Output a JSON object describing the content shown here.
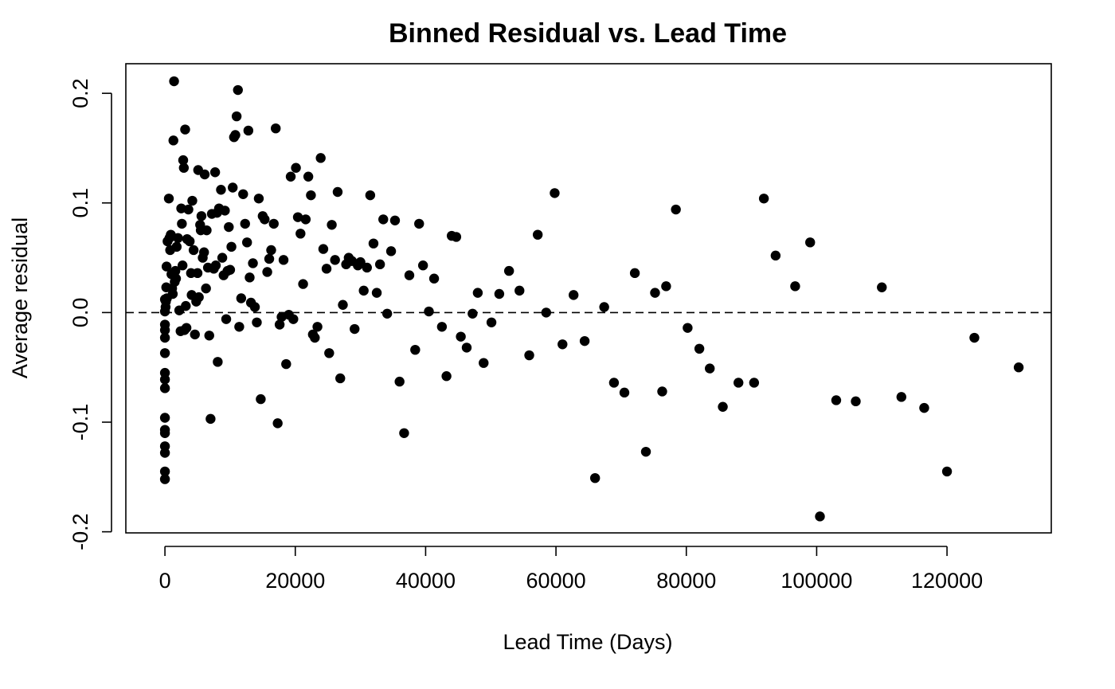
{
  "chart_data": {
    "type": "scatter",
    "title": "Binned Residual vs. Lead Time",
    "xlabel": "Lead Time (Days)",
    "ylabel": "Average residual",
    "xlim": [
      -6000,
      136000
    ],
    "ylim": [
      -0.201,
      0.227
    ],
    "x_ticks": [
      0,
      20000,
      40000,
      60000,
      80000,
      100000,
      120000
    ],
    "x_tick_labels": [
      "0",
      "20000",
      "40000",
      "60000",
      "80000",
      "100000",
      "120000"
    ],
    "y_ticks": [
      -0.2,
      -0.1,
      0.0,
      0.1,
      0.2
    ],
    "y_tick_labels": [
      "-0.2",
      "-0.1",
      "0.0",
      "0.1",
      "0.2"
    ],
    "reference_line": {
      "y": 0,
      "style": "dashed"
    },
    "grid": false,
    "marker_color": "#000000",
    "points": [
      [
        0,
        -0.152
      ],
      [
        0,
        -0.145
      ],
      [
        0,
        -0.128
      ],
      [
        0,
        -0.122
      ],
      [
        0,
        -0.11
      ],
      [
        0,
        -0.107
      ],
      [
        0,
        -0.096
      ],
      [
        0,
        -0.069
      ],
      [
        0,
        -0.061
      ],
      [
        0,
        -0.055
      ],
      [
        0,
        -0.037
      ],
      [
        0,
        -0.023
      ],
      [
        0,
        -0.016
      ],
      [
        0,
        -0.011
      ],
      [
        0,
        0.001
      ],
      [
        0,
        0.012
      ],
      [
        100,
        0.005
      ],
      [
        150,
        0.01
      ],
      [
        200,
        0.023
      ],
      [
        250,
        0.042
      ],
      [
        300,
        0.013
      ],
      [
        400,
        0.065
      ],
      [
        600,
        0.104
      ],
      [
        700,
        0.068
      ],
      [
        800,
        0.057
      ],
      [
        900,
        0.071
      ],
      [
        1000,
        0.035
      ],
      [
        1100,
        0.022
      ],
      [
        1200,
        0.017
      ],
      [
        1300,
        0.157
      ],
      [
        1400,
        0.211
      ],
      [
        1500,
        0.028
      ],
      [
        1600,
        0.038
      ],
      [
        1700,
        0.031
      ],
      [
        1800,
        0.06
      ],
      [
        2000,
        0.068
      ],
      [
        2200,
        0.002
      ],
      [
        2400,
        -0.017
      ],
      [
        2500,
        0.095
      ],
      [
        2600,
        0.081
      ],
      [
        2700,
        0.043
      ],
      [
        2800,
        0.139
      ],
      [
        2900,
        0.132
      ],
      [
        3000,
        -0.016
      ],
      [
        3100,
        0.167
      ],
      [
        3200,
        0.006
      ],
      [
        3300,
        -0.014
      ],
      [
        3400,
        0.067
      ],
      [
        3600,
        0.094
      ],
      [
        3800,
        0.065
      ],
      [
        4000,
        0.036
      ],
      [
        4100,
        0.016
      ],
      [
        4200,
        0.102
      ],
      [
        4400,
        0.057
      ],
      [
        4600,
        -0.02
      ],
      [
        4800,
        0.01
      ],
      [
        5000,
        0.036
      ],
      [
        5100,
        0.13
      ],
      [
        5200,
        0.014
      ],
      [
        5400,
        0.08
      ],
      [
        5500,
        0.075
      ],
      [
        5600,
        0.088
      ],
      [
        5800,
        0.05
      ],
      [
        6000,
        0.055
      ],
      [
        6100,
        0.126
      ],
      [
        6300,
        0.022
      ],
      [
        6400,
        0.075
      ],
      [
        6600,
        0.041
      ],
      [
        6800,
        -0.021
      ],
      [
        7000,
        -0.097
      ],
      [
        7200,
        0.09
      ],
      [
        7500,
        0.04
      ],
      [
        7700,
        0.128
      ],
      [
        7800,
        0.043
      ],
      [
        8000,
        0.091
      ],
      [
        8100,
        -0.045
      ],
      [
        8300,
        0.095
      ],
      [
        8600,
        0.112
      ],
      [
        8800,
        0.05
      ],
      [
        9000,
        0.034
      ],
      [
        9200,
        0.093
      ],
      [
        9400,
        -0.006
      ],
      [
        9600,
        0.038
      ],
      [
        9800,
        0.078
      ],
      [
        10000,
        0.039
      ],
      [
        10200,
        0.06
      ],
      [
        10400,
        0.114
      ],
      [
        10600,
        0.16
      ],
      [
        10800,
        0.162
      ],
      [
        11000,
        0.179
      ],
      [
        11200,
        0.203
      ],
      [
        11400,
        -0.013
      ],
      [
        11700,
        0.013
      ],
      [
        12000,
        0.108
      ],
      [
        12300,
        0.081
      ],
      [
        12600,
        0.064
      ],
      [
        12800,
        0.166
      ],
      [
        13000,
        0.032
      ],
      [
        13200,
        0.009
      ],
      [
        13500,
        0.045
      ],
      [
        13800,
        0.005
      ],
      [
        14100,
        -0.009
      ],
      [
        14400,
        0.104
      ],
      [
        14700,
        -0.079
      ],
      [
        15000,
        0.088
      ],
      [
        15300,
        0.085
      ],
      [
        15700,
        0.037
      ],
      [
        16000,
        0.049
      ],
      [
        16300,
        0.057
      ],
      [
        16700,
        0.081
      ],
      [
        17000,
        0.168
      ],
      [
        17300,
        -0.101
      ],
      [
        17600,
        -0.011
      ],
      [
        17900,
        -0.004
      ],
      [
        18200,
        0.048
      ],
      [
        18600,
        -0.047
      ],
      [
        19000,
        -0.002
      ],
      [
        19300,
        0.124
      ],
      [
        19700,
        -0.006
      ],
      [
        20100,
        0.132
      ],
      [
        20400,
        0.087
      ],
      [
        20800,
        0.072
      ],
      [
        21200,
        0.026
      ],
      [
        21600,
        0.085
      ],
      [
        22000,
        0.124
      ],
      [
        22400,
        0.107
      ],
      [
        22700,
        -0.02
      ],
      [
        23000,
        -0.023
      ],
      [
        23400,
        -0.013
      ],
      [
        23900,
        0.141
      ],
      [
        24300,
        0.058
      ],
      [
        24800,
        0.04
      ],
      [
        25200,
        -0.037
      ],
      [
        25600,
        0.08
      ],
      [
        26100,
        0.048
      ],
      [
        26500,
        0.11
      ],
      [
        26900,
        -0.06
      ],
      [
        27300,
        0.007
      ],
      [
        27800,
        0.044
      ],
      [
        28200,
        0.05
      ],
      [
        28700,
        0.047
      ],
      [
        29100,
        -0.015
      ],
      [
        29600,
        0.043
      ],
      [
        30000,
        0.046
      ],
      [
        30500,
        0.02
      ],
      [
        31000,
        0.041
      ],
      [
        31500,
        0.107
      ],
      [
        32000,
        0.063
      ],
      [
        32500,
        0.018
      ],
      [
        33000,
        0.044
      ],
      [
        33500,
        0.085
      ],
      [
        34100,
        -0.001
      ],
      [
        34700,
        0.056
      ],
      [
        35300,
        0.084
      ],
      [
        36000,
        -0.063
      ],
      [
        36700,
        -0.11
      ],
      [
        37500,
        0.034
      ],
      [
        38400,
        -0.034
      ],
      [
        39000,
        0.081
      ],
      [
        39600,
        0.043
      ],
      [
        40500,
        0.001
      ],
      [
        41300,
        0.031
      ],
      [
        42500,
        -0.013
      ],
      [
        43200,
        -0.058
      ],
      [
        44000,
        0.07
      ],
      [
        44700,
        0.069
      ],
      [
        45400,
        -0.022
      ],
      [
        46300,
        -0.032
      ],
      [
        47200,
        -0.001
      ],
      [
        48000,
        0.018
      ],
      [
        48900,
        -0.046
      ],
      [
        50100,
        -0.009
      ],
      [
        51300,
        0.017
      ],
      [
        52800,
        0.038
      ],
      [
        54400,
        0.02
      ],
      [
        55900,
        -0.039
      ],
      [
        57200,
        0.071
      ],
      [
        58500,
        0
      ],
      [
        59800,
        0.109
      ],
      [
        61000,
        -0.029
      ],
      [
        62700,
        0.016
      ],
      [
        64400,
        -0.026
      ],
      [
        66000,
        -0.151
      ],
      [
        67400,
        0.005
      ],
      [
        68900,
        -0.064
      ],
      [
        70500,
        -0.073
      ],
      [
        72100,
        0.036
      ],
      [
        73800,
        -0.127
      ],
      [
        75200,
        0.018
      ],
      [
        76300,
        -0.072
      ],
      [
        76900,
        0.024
      ],
      [
        78400,
        0.094
      ],
      [
        80200,
        -0.014
      ],
      [
        82000,
        -0.033
      ],
      [
        83600,
        -0.051
      ],
      [
        85600,
        -0.086
      ],
      [
        88000,
        -0.064
      ],
      [
        90400,
        -0.064
      ],
      [
        91900,
        0.104
      ],
      [
        93700,
        0.052
      ],
      [
        96700,
        0.024
      ],
      [
        99000,
        0.064
      ],
      [
        100500,
        -0.186
      ],
      [
        103000,
        -0.08
      ],
      [
        106000,
        -0.081
      ],
      [
        110000,
        0.023
      ],
      [
        113000,
        -0.077
      ],
      [
        116500,
        -0.087
      ],
      [
        120000,
        -0.145
      ],
      [
        124200,
        -0.023
      ],
      [
        131000,
        -0.05
      ]
    ]
  }
}
